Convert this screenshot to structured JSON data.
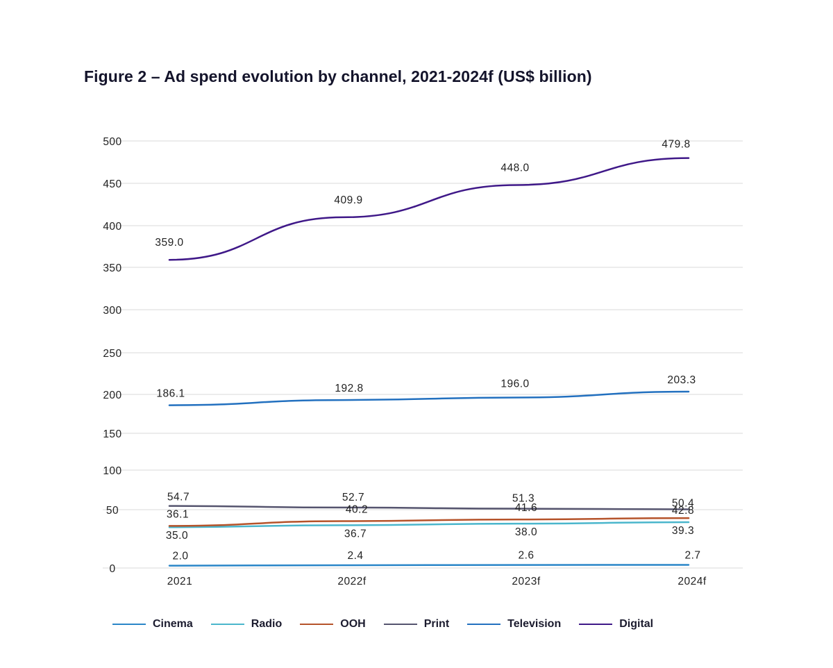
{
  "title": "Figure 2 – Ad spend evolution by channel, 2021-2024f (US$ billion)",
  "chart_data": {
    "type": "line",
    "title": "Figure 2 – Ad spend evolution by channel, 2021-2024f (US$ billion)",
    "xlabel": "",
    "ylabel": "",
    "categories": [
      "2021",
      "2022f",
      "2023f",
      "2024f"
    ],
    "y_ticks": [
      0,
      50,
      100,
      150,
      200,
      250,
      300,
      350,
      400,
      450,
      500
    ],
    "ylim": [
      0,
      500
    ],
    "grid": true,
    "legend_position": "bottom",
    "series": [
      {
        "name": "Cinema",
        "color": "#2a86c8",
        "values": [
          2.0,
          2.4,
          2.6,
          2.7
        ],
        "labels": [
          "2.0",
          "2.4",
          "2.6",
          "2.7"
        ]
      },
      {
        "name": "Radio",
        "color": "#4ab6cc",
        "values": [
          35.0,
          36.7,
          38.0,
          39.3
        ],
        "labels": [
          "35.0",
          "36.7",
          "38.0",
          "39.3"
        ]
      },
      {
        "name": "OOH",
        "color": "#b5532a",
        "values": [
          36.1,
          40.2,
          41.6,
          42.8
        ],
        "labels": [
          "36.1",
          "40.2",
          "41.6",
          "42.8"
        ]
      },
      {
        "name": "Print",
        "color": "#55546e",
        "values": [
          54.7,
          52.7,
          51.3,
          50.4
        ],
        "labels": [
          "54.7",
          "52.7",
          "51.3",
          "50.4"
        ]
      },
      {
        "name": "Television",
        "color": "#2270bf",
        "values": [
          186.1,
          192.8,
          196.0,
          203.3
        ],
        "labels": [
          "186.1",
          "192.8",
          "196.0",
          "203.3"
        ]
      },
      {
        "name": "Digital",
        "color": "#3f1888",
        "values": [
          359.0,
          409.9,
          448.0,
          479.8
        ],
        "labels": [
          "359.0",
          "409.9",
          "448.0",
          "479.8"
        ]
      }
    ]
  }
}
